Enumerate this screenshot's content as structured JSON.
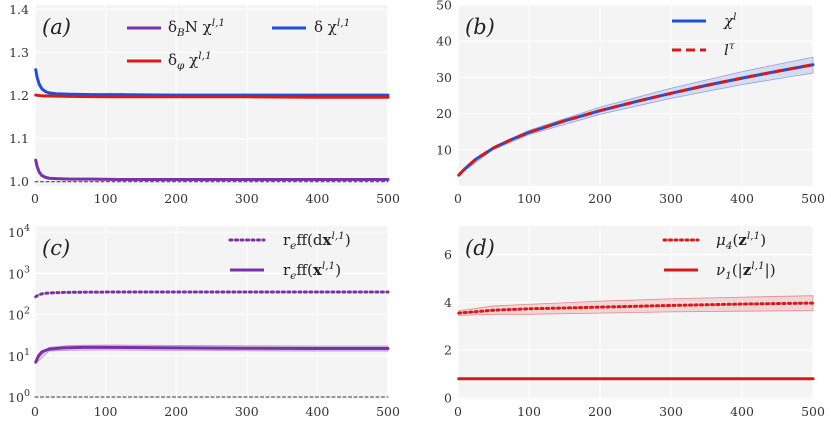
{
  "chart_data": [
    {
      "panel": "(a)",
      "type": "line",
      "x_ticks": [
        "0",
        "100",
        "200",
        "300",
        "400",
        "500"
      ],
      "y_ticks": [
        "1.0",
        "1.1",
        "1.2",
        "1.3",
        "1.4"
      ],
      "xlim": [
        0,
        500
      ],
      "ylim": [
        0.99,
        1.41
      ],
      "legend": {
        "placement": "top-right",
        "entries": [
          {
            "sub": "BN",
            "label": "δ_BN χ^{l,1}",
            "color": "#7b2fa8"
          },
          {
            "label": "δ χ^{l,1}",
            "color": "#1f4fd8"
          },
          {
            "sub": "φ",
            "label": "δ_φ χ^{l,1}",
            "color": "#d61a1a"
          }
        ]
      },
      "series": [
        {
          "name": "δ χ^{l,1}",
          "color": "#1f4fd8",
          "x": [
            1,
            3,
            6,
            10,
            15,
            20,
            30,
            50,
            80,
            120,
            200,
            300,
            400,
            500
          ],
          "y": [
            1.26,
            1.242,
            1.226,
            1.215,
            1.209,
            1.206,
            1.204,
            1.203,
            1.202,
            1.202,
            1.201,
            1.201,
            1.201,
            1.201
          ]
        },
        {
          "name": "δ_φ χ^{l,1}",
          "color": "#d61a1a",
          "x": [
            1,
            10,
            50,
            100,
            200,
            300,
            400,
            500
          ],
          "y": [
            1.201,
            1.199,
            1.198,
            1.197,
            1.197,
            1.197,
            1.196,
            1.196
          ]
        },
        {
          "name": "δ_BN χ^{l,1}",
          "color": "#7b2fa8",
          "x": [
            1,
            3,
            6,
            10,
            15,
            20,
            30,
            50,
            80,
            120,
            200,
            300,
            400,
            500
          ],
          "y": [
            1.05,
            1.035,
            1.022,
            1.014,
            1.01,
            1.008,
            1.007,
            1.006,
            1.006,
            1.005,
            1.005,
            1.005,
            1.005,
            1.005
          ]
        },
        {
          "name": "baseline",
          "color": "#333333",
          "dashed": true,
          "x": [
            0,
            500
          ],
          "y": [
            1.0,
            1.0
          ]
        }
      ]
    },
    {
      "panel": "(b)",
      "type": "line",
      "x_ticks": [
        "0",
        "100",
        "200",
        "300",
        "400",
        "500"
      ],
      "y_ticks": [
        "10",
        "20",
        "30",
        "40",
        "50"
      ],
      "xlim": [
        0,
        500
      ],
      "ylim": [
        0,
        50
      ],
      "legend": {
        "placement": "top-right",
        "entries": [
          {
            "label": "χ^l",
            "color": "#1f4fd8"
          },
          {
            "label": "l^τ",
            "color": "#d61a1a",
            "dashed": true
          }
        ]
      },
      "series": [
        {
          "name": "χ^l",
          "color": "#1f4fd8",
          "x": [
            1,
            10,
            25,
            50,
            75,
            100,
            150,
            200,
            250,
            300,
            350,
            400,
            450,
            500
          ],
          "y": [
            3.0,
            4.8,
            7.4,
            10.5,
            12.8,
            14.8,
            18.0,
            20.8,
            23.3,
            25.6,
            27.8,
            29.8,
            31.7,
            33.5
          ]
        },
        {
          "name": "l^τ",
          "color": "#d61a1a",
          "dashed": true,
          "x": [
            1,
            10,
            25,
            50,
            75,
            100,
            150,
            200,
            250,
            300,
            350,
            400,
            450,
            500
          ],
          "y": [
            3.0,
            4.8,
            7.4,
            10.5,
            12.8,
            14.8,
            18.0,
            20.8,
            23.3,
            25.6,
            27.8,
            29.8,
            31.7,
            33.5
          ]
        }
      ],
      "band": {
        "color": "#1f4fd8",
        "x": [
          1,
          50,
          100,
          200,
          300,
          400,
          500
        ],
        "lower": [
          3.0,
          10.1,
          14.2,
          19.8,
          24.2,
          28.0,
          31.2
        ],
        "upper": [
          3.0,
          10.9,
          15.4,
          21.8,
          27.0,
          31.6,
          35.6
        ]
      }
    },
    {
      "panel": "(c)",
      "type": "line",
      "yscale": "log",
      "x_ticks": [
        "0",
        "100",
        "200",
        "300",
        "400",
        "500"
      ],
      "y_ticks": [
        {
          "base": "10",
          "exp": "0"
        },
        {
          "base": "10",
          "exp": "1"
        },
        {
          "base": "10",
          "exp": "2"
        },
        {
          "base": "10",
          "exp": "3"
        },
        {
          "base": "10",
          "exp": "4"
        }
      ],
      "xlim": [
        0,
        500
      ],
      "ylim_log10": [
        -0.05,
        4.15
      ],
      "legend": {
        "placement": "top-right",
        "entries": [
          {
            "label": "r_eff(dx^{l,1})",
            "color": "#7b2fa8",
            "dotted": true
          },
          {
            "label": "r_eff(x^{l,1})",
            "color": "#7b2fa8"
          }
        ]
      },
      "series": [
        {
          "name": "r_eff(dx^{l,1})",
          "color": "#7b2fa8",
          "dotted": true,
          "x": [
            1,
            5,
            10,
            20,
            40,
            70,
            100,
            200,
            300,
            400,
            500
          ],
          "y": [
            270,
            300,
            320,
            335,
            345,
            350,
            352,
            352,
            352,
            352,
            352
          ]
        },
        {
          "name": "r_eff(x^{l,1})",
          "color": "#7b2fa8",
          "x": [
            1,
            5,
            10,
            20,
            40,
            70,
            100,
            200,
            300,
            400,
            500
          ],
          "y": [
            7,
            10,
            12.5,
            14.5,
            15.5,
            16,
            16,
            15.5,
            15.2,
            15,
            15
          ]
        },
        {
          "name": "baseline",
          "color": "#333333",
          "dashed": true,
          "x": [
            0,
            500
          ],
          "y": [
            1,
            1
          ]
        }
      ],
      "band": {
        "color": "#7b2fa8",
        "x": [
          1,
          20,
          50,
          100,
          200,
          300,
          400,
          500
        ],
        "lower": [
          6.5,
          13,
          13.6,
          13.8,
          13.5,
          13.2,
          13,
          13
        ],
        "upper": [
          7.5,
          16,
          17.8,
          18.2,
          17.8,
          17.5,
          17.2,
          17.2
        ]
      }
    },
    {
      "panel": "(d)",
      "type": "line",
      "x_ticks": [
        "0",
        "100",
        "200",
        "300",
        "400",
        "500"
      ],
      "y_ticks": [
        "0",
        "2",
        "4",
        "6"
      ],
      "xlim": [
        0,
        500
      ],
      "ylim": [
        -0.05,
        7.2
      ],
      "legend": {
        "placement": "top-right",
        "entries": [
          {
            "label": "μ_4(z^{l,1})",
            "color": "#d61a1a",
            "dotted": true
          },
          {
            "label": "ν_1(|z^{l,1}|)",
            "color": "#d61a1a"
          }
        ]
      },
      "series": [
        {
          "name": "μ_4(z^{l,1})",
          "color": "#d61a1a",
          "dotted": true,
          "x": [
            1,
            50,
            100,
            200,
            300,
            400,
            500
          ],
          "y": [
            3.55,
            3.67,
            3.73,
            3.8,
            3.87,
            3.93,
            3.97
          ]
        },
        {
          "name": "ν_1(|z^{l,1}|)",
          "color": "#d61a1a",
          "x": [
            1,
            500
          ],
          "y": [
            0.8,
            0.8
          ]
        }
      ],
      "band": {
        "color": "#d61a1a",
        "x": [
          1,
          50,
          100,
          200,
          300,
          400,
          500
        ],
        "lower": [
          3.45,
          3.5,
          3.5,
          3.55,
          3.6,
          3.63,
          3.65
        ],
        "upper": [
          3.65,
          3.85,
          3.92,
          4.05,
          4.15,
          4.22,
          4.28
        ]
      }
    }
  ]
}
